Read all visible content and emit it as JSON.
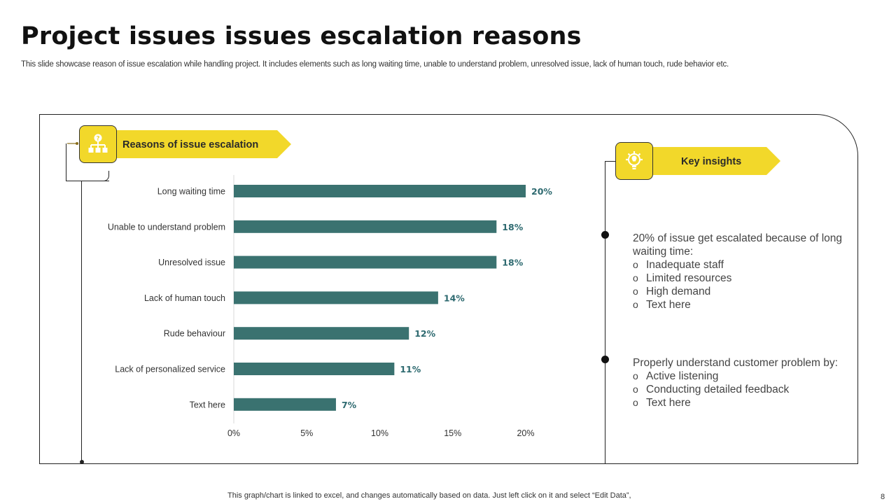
{
  "page": {
    "title": "Project issues issues escalation reasons",
    "subtitle": "This slide showcase reason of issue escalation while handling project. It includes elements such as long waiting time, unable to understand problem, unresolved issue, lack of human touch, rude behavior etc.",
    "footer": "This graph/chart is linked to excel,  and changes automatically based on data. Just left click on it and select “Edit Data”,",
    "page_number": "8"
  },
  "left_banner": {
    "label": "Reasons of issue escalation",
    "icon": "org-chart-question-icon"
  },
  "right_banner": {
    "label": "Key insights",
    "icon": "gear-bulb-icon"
  },
  "insights": [
    {
      "heading": "20% of issue get escalated because of long waiting time:",
      "items": [
        "Inadequate staff",
        "Limited resources",
        "High demand",
        "Text here"
      ]
    },
    {
      "heading": "Properly understand customer problem by:",
      "items": [
        "Active listening",
        "Conducting detailed feedback",
        "Text here"
      ]
    }
  ],
  "chart_data": {
    "type": "bar",
    "orientation": "horizontal",
    "categories": [
      "Long waiting time",
      "Unable to understand problem",
      "Unresolved issue",
      "Lack of human touch",
      "Rude behaviour",
      "Lack of personalized service",
      "Text here"
    ],
    "values": [
      20,
      18,
      18,
      14,
      12,
      11,
      7
    ],
    "data_labels": [
      "20%",
      "18%",
      "18%",
      "14%",
      "12%",
      "11%",
      "7%"
    ],
    "x_ticks": [
      "0%",
      "5%",
      "10%",
      "15%",
      "20%"
    ],
    "xlim": [
      0,
      20
    ],
    "bar_color": "#3a7270",
    "label_color": "#2e6a70",
    "title": "",
    "xlabel": "",
    "ylabel": ""
  },
  "colors": {
    "accent": "#f2d82a",
    "bar": "#3a7270"
  }
}
